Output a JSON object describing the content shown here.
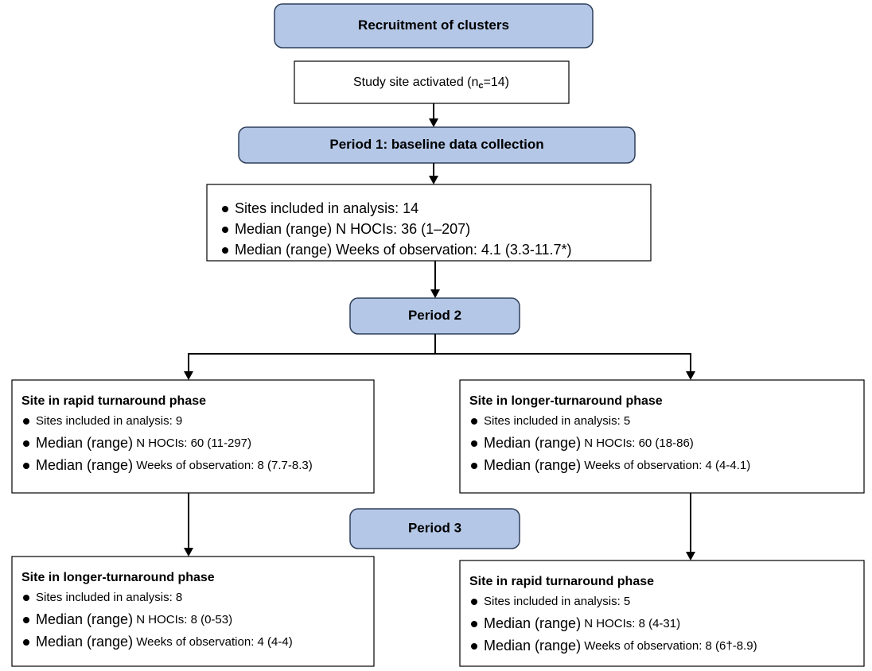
{
  "recruitment": {
    "title": "Recruitment of clusters"
  },
  "activation": {
    "prefix": "Study site activated (n",
    "subscript": "c",
    "suffix": "=14)"
  },
  "period1": {
    "title": "Period 1: baseline data collection"
  },
  "baseline": {
    "items": [
      "Sites included in analysis: 14",
      "Median (range) N HOCIs: 36 (1–207)",
      "Median (range) Weeks of observation: 4.1 (3.3-11.7*)"
    ]
  },
  "period2": {
    "title": "Period 2"
  },
  "period2_arms": [
    {
      "title": "Site in rapid turnaround phase",
      "items": [
        {
          "text": "Sites included in analysis: 9"
        },
        {
          "lead": "Median (range)",
          "text": "N HOCIs: 60 (11-297)"
        },
        {
          "lead": "Median (range)",
          "text": "Weeks of observation: 8 (7.7-8.3)"
        }
      ]
    },
    {
      "title": "Site in longer-turnaround phase",
      "items": [
        {
          "text": "Sites included in analysis: 5"
        },
        {
          "lead": "Median (range)",
          "text": "N HOCIs: 60 (18-86)"
        },
        {
          "lead": "Median (range)",
          "text": "Weeks of observation: 4 (4-4.1)"
        }
      ]
    }
  ],
  "period3": {
    "title": "Period 3"
  },
  "period3_arms": [
    {
      "title": "Site in longer-turnaround phase",
      "items": [
        {
          "text": "Sites included in analysis: 8"
        },
        {
          "lead": "Median (range)",
          "text": "N HOCIs: 8 (0-53)"
        },
        {
          "lead": "Median (range)",
          "text": "Weeks of observation: 4 (4-4)"
        }
      ]
    },
    {
      "title": "Site in rapid turnaround phase",
      "items": [
        {
          "text": "Sites included in analysis: 5"
        },
        {
          "lead": "Median (range)",
          "text": "N HOCIs: 8 (4-31)"
        },
        {
          "lead": "Median (range)",
          "text": "Weeks of observation: 8 (6†-8.9)"
        }
      ]
    }
  ]
}
